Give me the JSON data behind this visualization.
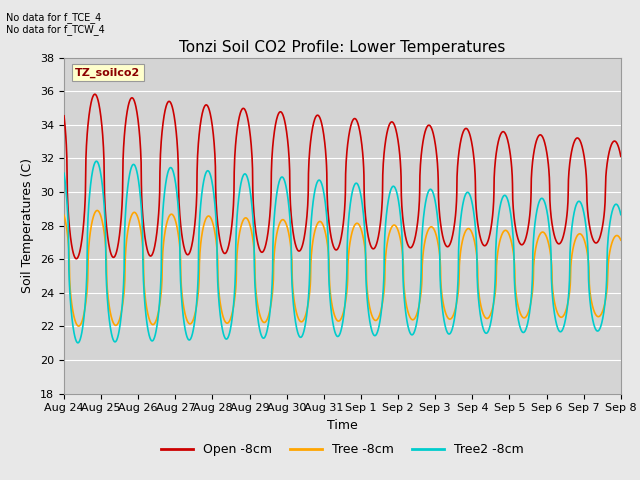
{
  "title": "Tonzi Soil CO2 Profile: Lower Temperatures",
  "xlabel": "Time",
  "ylabel": "Soil Temperatures (C)",
  "ylim": [
    18,
    38
  ],
  "yticks": [
    18,
    20,
    22,
    24,
    26,
    28,
    30,
    32,
    34,
    36,
    38
  ],
  "x_labels": [
    "Aug 24",
    "Aug 25",
    "Aug 26",
    "Aug 27",
    "Aug 28",
    "Aug 29",
    "Aug 30",
    "Aug 31",
    "Sep 1",
    "Sep 2",
    "Sep 3",
    "Sep 4",
    "Sep 5",
    "Sep 6",
    "Sep 7",
    "Sep 8"
  ],
  "note_lines": [
    "No data for f_TCE_4",
    "No data for f_TCW_4"
  ],
  "legend_label": "TZ_soilco2",
  "series_labels": [
    "Open -8cm",
    "Tree -8cm",
    "Tree2 -8cm"
  ],
  "series_colors": [
    "#cc0000",
    "#ffa500",
    "#00cccc"
  ],
  "background_color": "#e8e8e8",
  "plot_bg_color": "#d4d4d4",
  "grid_color": "#ffffff",
  "title_fontsize": 11,
  "axis_fontsize": 9,
  "tick_fontsize": 8,
  "n_days": 15
}
